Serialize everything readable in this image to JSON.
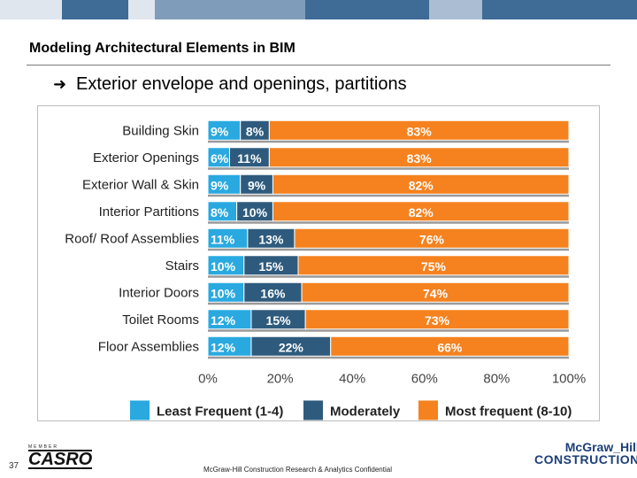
{
  "slide": {
    "title": "Modeling Architectural Elements in BIM",
    "bullet": "Exterior envelope and openings, partitions",
    "page_number": "37",
    "footer_note": "McGraw-Hill Construction Research & Analytics Confidential",
    "logo_left_small": "MEMBER",
    "logo_left_word": "CASRO",
    "logo_right_line1": "McGraw_Hill",
    "logo_right_line2": "CONSTRUCTION"
  },
  "band_colors": [
    "#dfe6ee",
    "#3f6b97",
    "#dfe6ee",
    "#7f9cbb",
    "#3f6b97",
    "#aabdd2",
    "#3f6b97"
  ],
  "chart_data": {
    "type": "bar",
    "orientation": "horizontal",
    "stacked": true,
    "categories": [
      "Building Skin",
      "Exterior Openings",
      "Exterior Wall & Skin",
      "Interior Partitions",
      "Roof/ Roof Assemblies",
      "Stairs",
      "Interior Doors",
      "Toilet Rooms",
      "Floor Assemblies"
    ],
    "series": [
      {
        "name": "Least Frequent (1-4)",
        "color": "#29a9e0",
        "values": [
          9,
          6,
          9,
          8,
          11,
          10,
          10,
          12,
          12
        ]
      },
      {
        "name": "Moderately",
        "color": "#2e5b7d",
        "values": [
          8,
          11,
          9,
          10,
          13,
          15,
          16,
          15,
          22
        ]
      },
      {
        "name": "Most frequent (8-10)",
        "color": "#f5821f",
        "values": [
          83,
          83,
          82,
          82,
          76,
          75,
          74,
          73,
          66
        ]
      }
    ],
    "xlim": [
      0,
      100
    ],
    "xticks": [
      0,
      20,
      40,
      60,
      80,
      100
    ],
    "tick_suffix": "%",
    "legend_position": "bottom",
    "grid": false
  }
}
